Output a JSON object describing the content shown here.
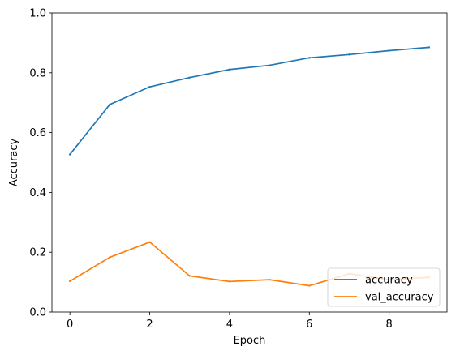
{
  "chart_data": {
    "type": "line",
    "title": "",
    "xlabel": "Epoch",
    "ylabel": "Accuracy",
    "xlim": [
      -0.45,
      9.45
    ],
    "ylim": [
      0.0,
      1.0
    ],
    "x": [
      0,
      1,
      2,
      3,
      4,
      5,
      6,
      7,
      8,
      9
    ],
    "xticks": [
      0,
      2,
      4,
      6,
      8
    ],
    "xtick_labels": [
      "0",
      "2",
      "4",
      "6",
      "8"
    ],
    "yticks": [
      0.0,
      0.2,
      0.4,
      0.6,
      0.8,
      1.0
    ],
    "ytick_labels": [
      "0.0",
      "0.2",
      "0.4",
      "0.6",
      "0.8",
      "1.0"
    ],
    "grid": false,
    "legend_position": "lower right",
    "series": [
      {
        "name": "accuracy",
        "color": "#1f77b4",
        "values": [
          0.527,
          0.694,
          0.753,
          0.784,
          0.811,
          0.825,
          0.85,
          0.861,
          0.874,
          0.885
        ]
      },
      {
        "name": "val_accuracy",
        "color": "#ff7f0e",
        "values": [
          0.103,
          0.183,
          0.234,
          0.121,
          0.102,
          0.108,
          0.088,
          0.128,
          0.108,
          0.116
        ]
      }
    ]
  }
}
